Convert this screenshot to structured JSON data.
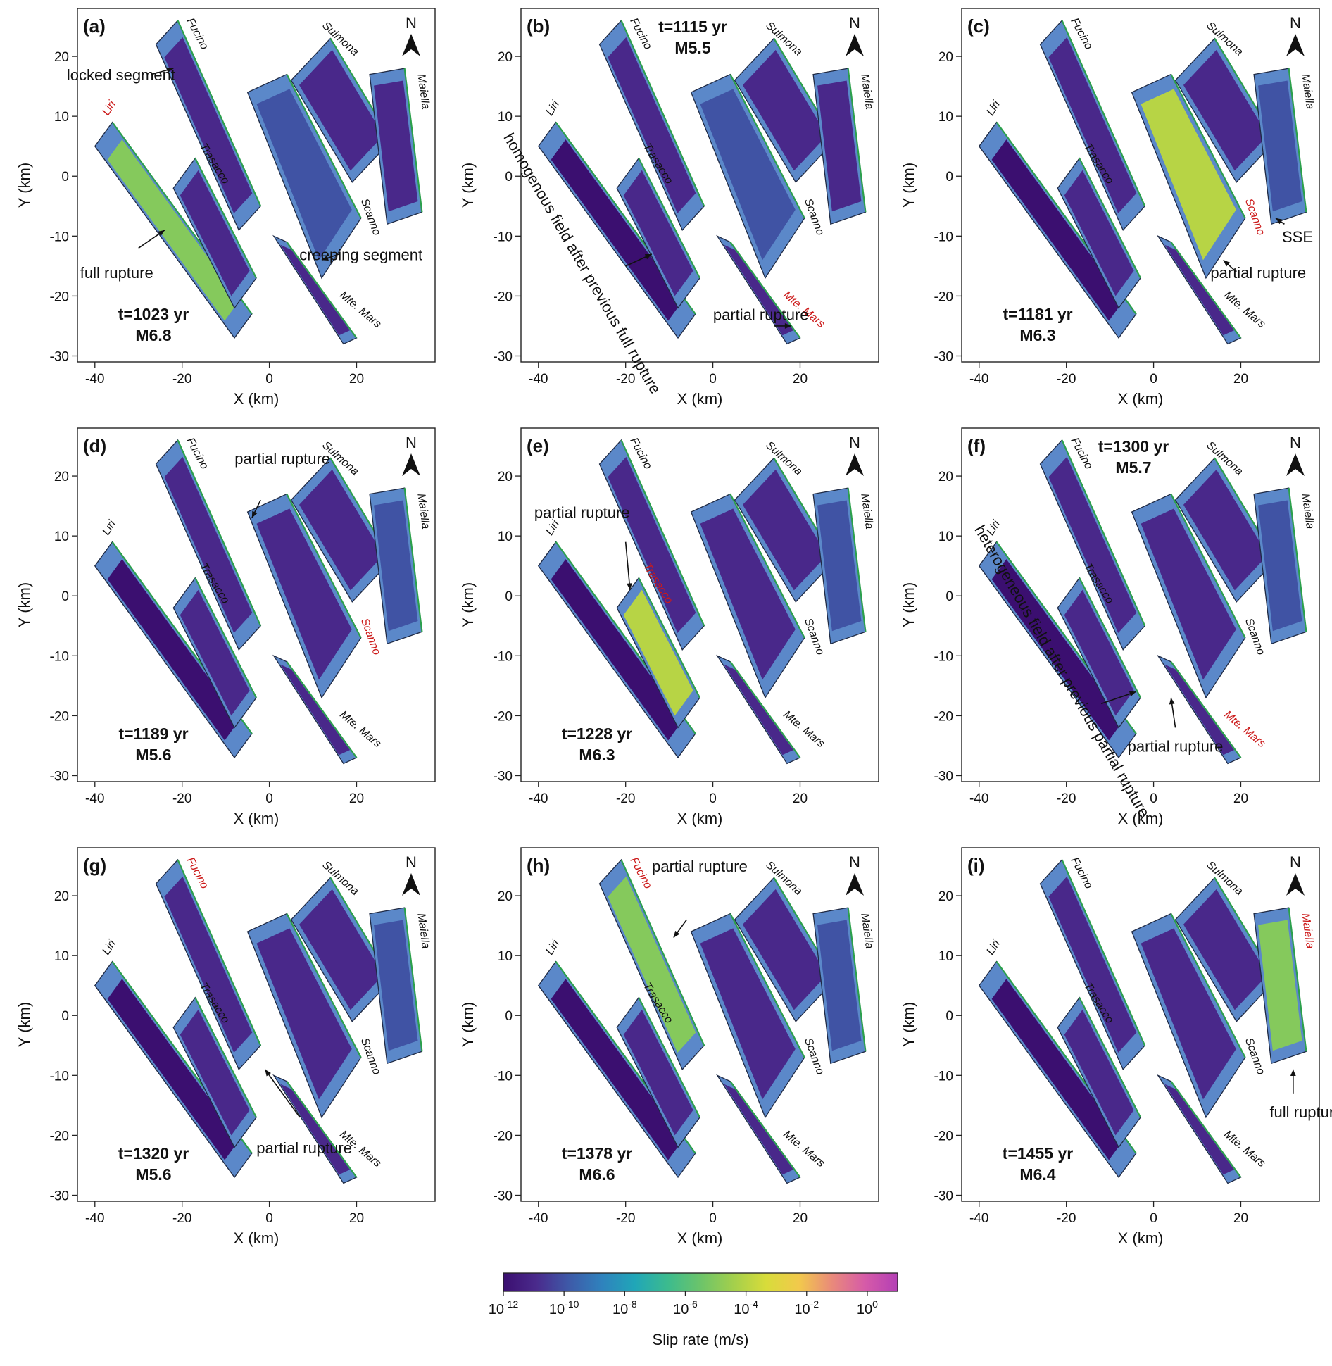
{
  "chart_data": {
    "type": "heatmap",
    "description_units": "fault map panels; x and y in km",
    "xlabel": "X (km)",
    "ylabel": "Y (km)",
    "xlim": [
      -44,
      38
    ],
    "ylim": [
      -31,
      28
    ],
    "xticks": [
      -40,
      -20,
      0,
      20
    ],
    "yticks": [
      20,
      10,
      0,
      -10,
      -20,
      -30
    ],
    "north_label": "N",
    "colorbar": {
      "label": "Slip rate (m/s)",
      "ticks": [
        {
          "base": "10",
          "exp": "-12"
        },
        {
          "base": "10",
          "exp": "-10"
        },
        {
          "base": "10",
          "exp": "-8"
        },
        {
          "base": "10",
          "exp": "-6"
        },
        {
          "base": "10",
          "exp": "-4"
        },
        {
          "base": "10",
          "exp": "-2"
        },
        {
          "base": "10",
          "exp": "0"
        }
      ],
      "log_min": -12,
      "log_max": 1,
      "colors": [
        "#3b0f70",
        "#4a2a8c",
        "#3e5aa8",
        "#2f82bd",
        "#20a6b8",
        "#3cbb8e",
        "#6cc46a",
        "#a3cf4c",
        "#d8dc3a",
        "#f2c94c",
        "#e98a7a",
        "#d65ba8",
        "#b43fb5"
      ]
    },
    "faults": [
      {
        "key": "fucino",
        "name": "Fucino",
        "quad": [
          [
            -26,
            22
          ],
          [
            -21,
            26
          ],
          [
            -2,
            -5
          ],
          [
            -7,
            -9
          ]
        ]
      },
      {
        "key": "liri",
        "name": "Liri",
        "quad": [
          [
            -40,
            5
          ],
          [
            -36,
            9
          ],
          [
            -4,
            -23
          ],
          [
            -8,
            -27
          ]
        ]
      },
      {
        "key": "trasacco",
        "name": "Trasacco",
        "quad": [
          [
            -22,
            -2
          ],
          [
            -17,
            3
          ],
          [
            -3,
            -17
          ],
          [
            -8,
            -22
          ]
        ]
      },
      {
        "key": "scanno",
        "name": "Scanno",
        "quad": [
          [
            -5,
            14
          ],
          [
            4,
            17
          ],
          [
            21,
            -7
          ],
          [
            12,
            -17
          ]
        ]
      },
      {
        "key": "sulmona",
        "name": "Sulmona",
        "quad": [
          [
            5,
            16
          ],
          [
            14,
            23
          ],
          [
            28,
            6
          ],
          [
            19,
            -1
          ]
        ]
      },
      {
        "key": "maiella",
        "name": "Maiella",
        "quad": [
          [
            23,
            17
          ],
          [
            31,
            18
          ],
          [
            35,
            -6
          ],
          [
            27,
            -8
          ]
        ]
      },
      {
        "key": "mtemars",
        "name": "Mte. Mars",
        "quad": [
          [
            1,
            -10
          ],
          [
            4,
            -11
          ],
          [
            20,
            -27
          ],
          [
            17,
            -28
          ]
        ]
      }
    ],
    "panels": [
      {
        "label": "(a)",
        "time": "t=1023 yr",
        "mag": "M6.8",
        "highlight": "liri",
        "state": {
          "fucino": -11,
          "liri": -5,
          "trasacco": -11,
          "scanno": -10,
          "sulmona": -11,
          "maiella": -11,
          "mtemars": -11
        },
        "annotations": [
          "locked segment",
          "full rupture",
          "creeping segment"
        ]
      },
      {
        "label": "(b)",
        "time": "t=1115 yr",
        "mag": "M5.5",
        "highlight": "mtemars",
        "state": {
          "fucino": -11,
          "liri": -12,
          "trasacco": -11,
          "scanno": -10,
          "sulmona": -11,
          "maiella": -11,
          "mtemars": -11
        },
        "annotations": [
          "homogenous field after previous full rupture",
          "partial rupture"
        ]
      },
      {
        "label": "(c)",
        "time": "t=1181 yr",
        "mag": "M6.3",
        "highlight": "scanno",
        "state": {
          "fucino": -11,
          "liri": -12,
          "trasacco": -11,
          "scanno": -4,
          "sulmona": -11,
          "maiella": -10,
          "mtemars": -11
        },
        "annotations": [
          "partial rupture",
          "SSE"
        ]
      },
      {
        "label": "(d)",
        "time": "t=1189 yr",
        "mag": "M5.6",
        "highlight": "scanno",
        "state": {
          "fucino": -11,
          "liri": -12,
          "trasacco": -11,
          "scanno": -11,
          "sulmona": -11,
          "maiella": -10,
          "mtemars": -11
        },
        "annotations": [
          "partial rupture"
        ]
      },
      {
        "label": "(e)",
        "time": "t=1228 yr",
        "mag": "M6.3",
        "highlight": "trasacco",
        "state": {
          "fucino": -11,
          "liri": -12,
          "trasacco": -4,
          "scanno": -11,
          "sulmona": -11,
          "maiella": -10,
          "mtemars": -11
        },
        "annotations": [
          "partial rupture"
        ]
      },
      {
        "label": "(f)",
        "time": "t=1300 yr",
        "mag": "M5.7",
        "highlight": "mtemars",
        "state": {
          "fucino": -11,
          "liri": -12,
          "trasacco": -11,
          "scanno": -11,
          "sulmona": -11,
          "maiella": -10,
          "mtemars": -11
        },
        "annotations": [
          "heterogeneous field after previous partial rupture",
          "partial rupture"
        ]
      },
      {
        "label": "(g)",
        "time": "t=1320 yr",
        "mag": "M5.6",
        "highlight": "fucino",
        "state": {
          "fucino": -11,
          "liri": -12,
          "trasacco": -11,
          "scanno": -11,
          "sulmona": -11,
          "maiella": -10,
          "mtemars": -11
        },
        "annotations": [
          "partial rupture"
        ]
      },
      {
        "label": "(h)",
        "time": "t=1378 yr",
        "mag": "M6.6",
        "highlight": "fucino",
        "state": {
          "fucino": -5,
          "liri": -12,
          "trasacco": -11,
          "scanno": -11,
          "sulmona": -11,
          "maiella": -10,
          "mtemars": -11
        },
        "annotations": [
          "partial rupture"
        ]
      },
      {
        "label": "(i)",
        "time": "t=1455 yr",
        "mag": "M6.4",
        "highlight": "maiella",
        "state": {
          "fucino": -11,
          "liri": -12,
          "trasacco": -11,
          "scanno": -11,
          "sulmona": -11,
          "maiella": -5,
          "mtemars": -11
        },
        "annotations": [
          "full rupture"
        ]
      }
    ]
  }
}
